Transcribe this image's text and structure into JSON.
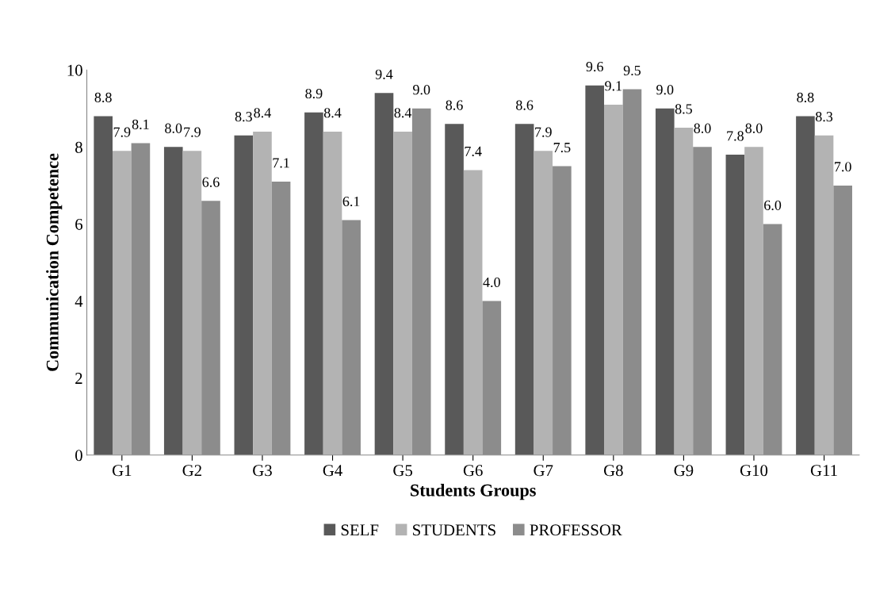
{
  "chart_data": {
    "type": "bar",
    "xlabel": "Students Groups",
    "ylabel": "Communication Competence",
    "categories": [
      "G1",
      "G2",
      "G3",
      "G4",
      "G5",
      "G6",
      "G7",
      "G8",
      "G9",
      "G10",
      "G11"
    ],
    "series": [
      {
        "name": "SELF",
        "color": "#595959",
        "values": [
          8.8,
          8.0,
          8.3,
          8.9,
          9.4,
          8.6,
          8.6,
          9.6,
          9.0,
          7.8,
          8.8
        ],
        "value_labels": [
          "8.8",
          "8.0",
          "8.3",
          "8.9",
          "9.4",
          "8.6",
          "8.6",
          "9.6",
          "9.0",
          "7.8",
          "8.8"
        ]
      },
      {
        "name": "STUDENTS",
        "color": "#b3b3b3",
        "values": [
          7.9,
          7.9,
          8.4,
          8.4,
          8.4,
          7.4,
          7.9,
          9.1,
          8.5,
          8.0,
          8.3
        ],
        "value_labels": [
          "7.9",
          "7.9",
          "8.4",
          "8.4",
          "8.4",
          "7.4",
          "7.9",
          "9.1",
          "8.5",
          "8.0",
          "8.3"
        ]
      },
      {
        "name": "PROFESSOR",
        "color": "#8c8c8c",
        "values": [
          8.1,
          6.6,
          7.1,
          6.1,
          9.0,
          4.0,
          7.5,
          9.5,
          8.0,
          6.0,
          7.0
        ],
        "value_labels": [
          "8.1",
          "6.6",
          "7.1",
          "6.1",
          "9.0",
          "4.0",
          "7.5",
          "9.5",
          "8.0",
          "6.0",
          "7.0"
        ]
      }
    ],
    "ylim": [
      0,
      10
    ],
    "yticks": [
      0,
      2,
      4,
      6,
      8,
      10
    ],
    "grid": false,
    "legend": "bottom"
  }
}
